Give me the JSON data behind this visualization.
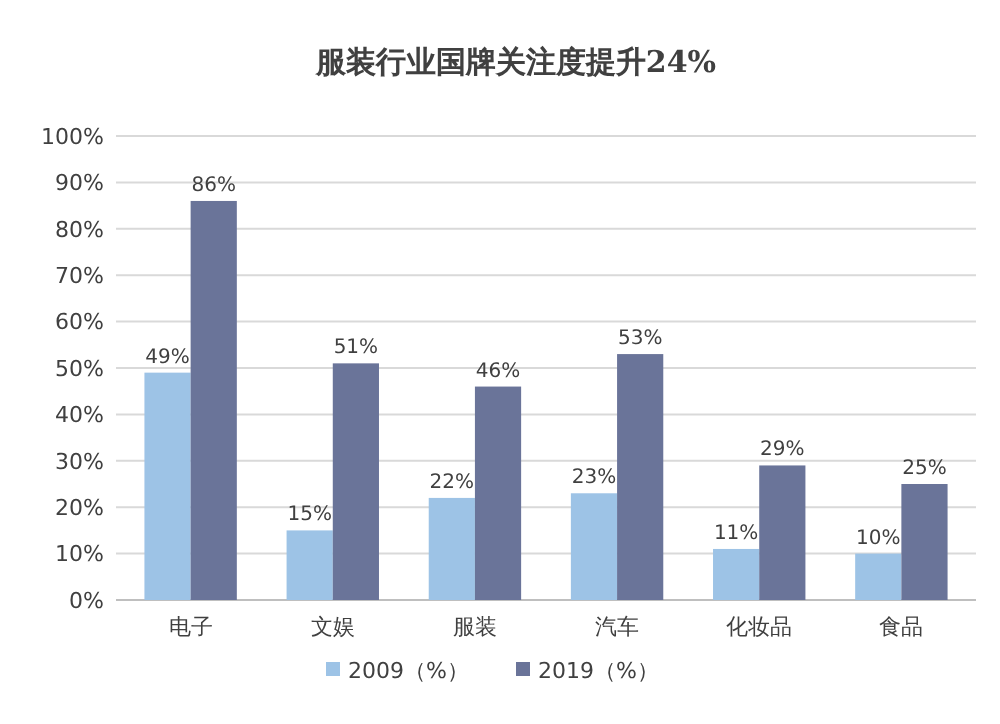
{
  "chart_data": {
    "type": "bar",
    "title": "服装行业国牌关注度提升24%",
    "categories": [
      "电子",
      "文娱",
      "服装",
      "汽车",
      "化妆品",
      "食品"
    ],
    "series": [
      {
        "name": "2009（%）",
        "color": "#9dc3e6",
        "values": [
          49,
          15,
          22,
          23,
          11,
          10
        ]
      },
      {
        "name": "2019（%）",
        "color": "#6a7499",
        "values": [
          86,
          51,
          46,
          53,
          29,
          25
        ]
      }
    ],
    "ylim": [
      0,
      100
    ],
    "yticks": [
      {
        "value": 0,
        "label": "0%"
      },
      {
        "value": 10,
        "label": "10%"
      },
      {
        "value": 20,
        "label": "20%"
      },
      {
        "value": 30,
        "label": "30%"
      },
      {
        "value": 40,
        "label": "40%"
      },
      {
        "value": 50,
        "label": "50%"
      },
      {
        "value": 60,
        "label": "60%"
      },
      {
        "value": 70,
        "label": "70%"
      },
      {
        "value": 80,
        "label": "80%"
      },
      {
        "value": 90,
        "label": "90%"
      },
      {
        "value": 100,
        "label": "100%"
      }
    ],
    "value_labels": [
      [
        "49%",
        "15%",
        "22%",
        "23%",
        "11%",
        "10%"
      ],
      [
        "86%",
        "51%",
        "46%",
        "53%",
        "29%",
        "25%"
      ]
    ],
    "grid": "y",
    "legend": "bottom"
  }
}
